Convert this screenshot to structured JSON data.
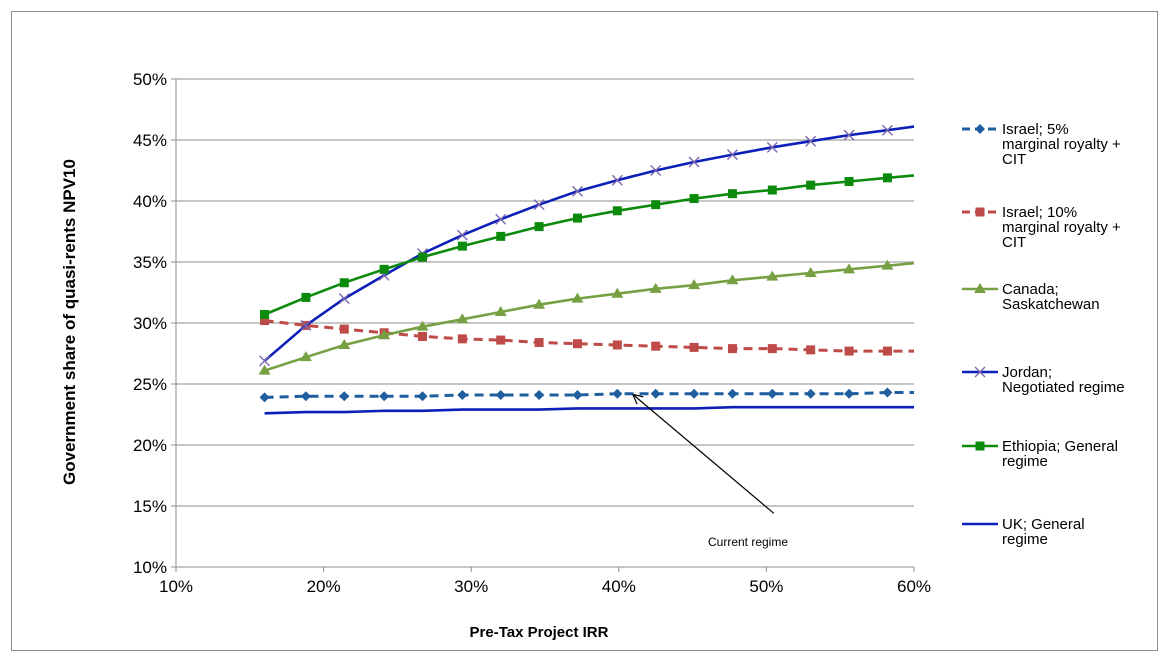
{
  "chart_data": {
    "type": "line",
    "xlabel": "Pre-Tax Project IRR",
    "ylabel": "Government share of quasi-rents NPV10",
    "xlim": [
      0.1,
      0.6
    ],
    "ylim": [
      0.1,
      0.5
    ],
    "x_ticks": [
      "10%",
      "20%",
      "30%",
      "40%",
      "50%",
      "60%"
    ],
    "y_ticks": [
      "10%",
      "15%",
      "20%",
      "25%",
      "30%",
      "35%",
      "40%",
      "45%",
      "50%"
    ],
    "grid": "horizontal",
    "legend_position": "right",
    "x": [
      0.16,
      0.188,
      0.214,
      0.241,
      0.267,
      0.294,
      0.32,
      0.346,
      0.372,
      0.399,
      0.425,
      0.451,
      0.477,
      0.504,
      0.53,
      0.556,
      0.582,
      0.6
    ],
    "series": [
      {
        "name": "Israel; 5% marginal royalty + CIT",
        "lines": [
          "Israel; 5%",
          "marginal royalty +",
          "CIT"
        ],
        "color": "#1f5f9f",
        "dash": "dashed",
        "marker": "diamond",
        "values": [
          0.239,
          0.24,
          0.24,
          0.24,
          0.24,
          0.241,
          0.241,
          0.241,
          0.241,
          0.242,
          0.242,
          0.242,
          0.242,
          0.242,
          0.242,
          0.242,
          0.243,
          0.243
        ]
      },
      {
        "name": "Israel; 10% marginal royalty + CIT",
        "lines": [
          "Israel; 10%",
          "marginal royalty +",
          "CIT"
        ],
        "color": "#be4b48",
        "dash": "dashed",
        "marker": "square",
        "values": [
          0.302,
          0.298,
          0.295,
          0.292,
          0.289,
          0.287,
          0.286,
          0.284,
          0.283,
          0.282,
          0.281,
          0.28,
          0.279,
          0.279,
          0.278,
          0.277,
          0.277,
          0.277
        ]
      },
      {
        "name": "Canada; Saskatchewan",
        "lines": [
          "Canada;",
          "Saskatchewan"
        ],
        "color": "#77a043",
        "dash": "solid",
        "marker": "triangle",
        "values": [
          0.261,
          0.272,
          0.282,
          0.29,
          0.297,
          0.303,
          0.309,
          0.315,
          0.32,
          0.324,
          0.328,
          0.331,
          0.335,
          0.338,
          0.341,
          0.344,
          0.347,
          0.349
        ]
      },
      {
        "name": "Jordan; Negotiated regime",
        "lines": [
          "Jordan;",
          "Negotiated regime"
        ],
        "color": "#0c1fb8",
        "marker_color": "#7b68b0",
        "dash": "solid",
        "marker": "x",
        "values": [
          0.269,
          0.298,
          0.32,
          0.339,
          0.357,
          0.372,
          0.385,
          0.397,
          0.408,
          0.417,
          0.425,
          0.432,
          0.438,
          0.444,
          0.449,
          0.454,
          0.458,
          0.461
        ]
      },
      {
        "name": "Ethiopia; General regime",
        "lines": [
          "Ethiopia; General",
          "regime"
        ],
        "color": "#0c8a0c",
        "dash": "solid",
        "marker": "square",
        "values": [
          0.307,
          0.321,
          0.333,
          0.344,
          0.354,
          0.363,
          0.371,
          0.379,
          0.386,
          0.392,
          0.397,
          0.402,
          0.406,
          0.409,
          0.413,
          0.416,
          0.419,
          0.421
        ]
      },
      {
        "name": "UK; General regime",
        "lines": [
          "UK; General",
          "regime"
        ],
        "color": "#0c1fb8",
        "dash": "solid",
        "marker": "none",
        "values": [
          0.226,
          0.227,
          0.227,
          0.228,
          0.228,
          0.229,
          0.229,
          0.229,
          0.23,
          0.23,
          0.23,
          0.23,
          0.231,
          0.231,
          0.231,
          0.231,
          0.231,
          0.231
        ]
      }
    ],
    "annotation": {
      "text": "Current regime",
      "arrow_from": [
        0.505,
        0.144
      ],
      "arrow_to": [
        0.41,
        0.241
      ]
    }
  }
}
